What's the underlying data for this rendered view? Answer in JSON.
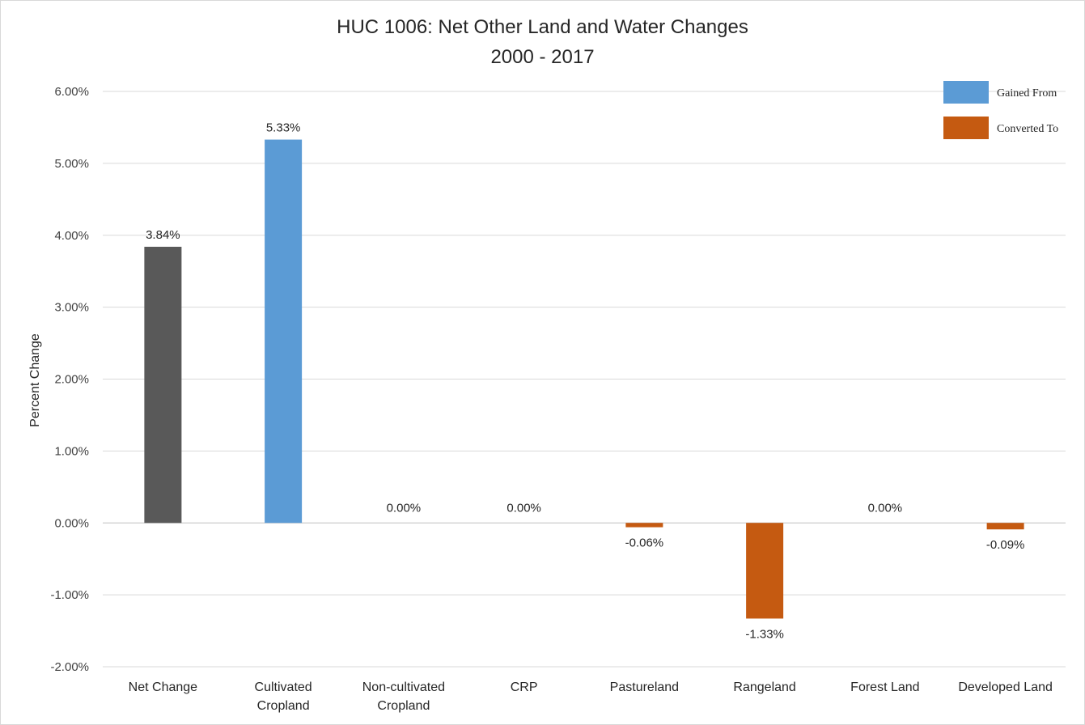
{
  "chart_data": {
    "type": "bar",
    "title": "HUC 1006: Net Other Land and Water Changes",
    "subtitle": "2000 - 2017",
    "ylabel": "Percent Change",
    "xlabel": "",
    "ylim": [
      -2,
      6
    ],
    "yticks": [
      "6.00%",
      "5.00%",
      "4.00%",
      "3.00%",
      "2.00%",
      "1.00%",
      "0.00%",
      "-1.00%",
      "-2.00%"
    ],
    "yticks_values": [
      6,
      5,
      4,
      3,
      2,
      1,
      0,
      -1,
      -2
    ],
    "grid": true,
    "legend_position": "top-right",
    "legend": [
      {
        "name": "Gained From",
        "color": "#5b9bd5"
      },
      {
        "name": "Converted To",
        "color": "#c55a11"
      }
    ],
    "categories": [
      [
        "Net Change"
      ],
      [
        "Cultivated",
        "Cropland"
      ],
      [
        "Non-cultivated",
        "Cropland"
      ],
      [
        "CRP"
      ],
      [
        "Pastureland"
      ],
      [
        "Rangeland"
      ],
      [
        "Forest Land"
      ],
      [
        "Developed Land"
      ]
    ],
    "values": [
      3.84,
      5.33,
      0.0,
      0.0,
      -0.06,
      -1.33,
      0.0,
      -0.09
    ],
    "data_labels": [
      "3.84%",
      "5.33%",
      "0.00%",
      "0.00%",
      "-0.06%",
      "-1.33%",
      "0.00%",
      "-0.09%"
    ],
    "bar_colors": [
      "#595959",
      "#5b9bd5",
      "#5b9bd5",
      "#5b9bd5",
      "#c55a11",
      "#c55a11",
      "#c55a11",
      "#c55a11"
    ]
  }
}
